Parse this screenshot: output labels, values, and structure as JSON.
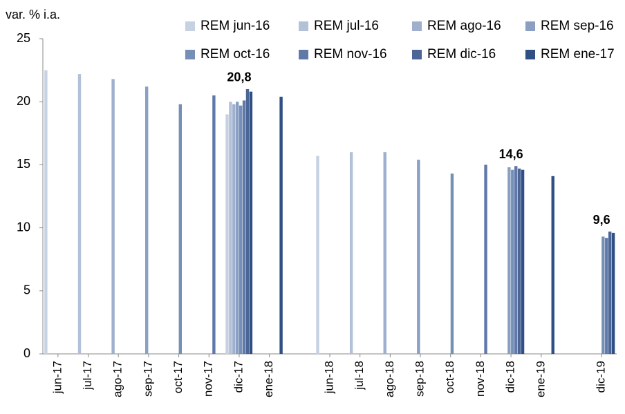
{
  "chart_data": {
    "type": "bar",
    "y_label": "var. % i.a.",
    "categories": [
      "jun-17",
      "jul-17",
      "ago-17",
      "sep-17",
      "oct-17",
      "nov-17",
      "dic-17",
      "ene-18",
      null,
      "jun-18",
      "jul-18",
      "ago-18",
      "sep-18",
      "oct-18",
      "nov-18",
      "dic-18",
      "ene-19",
      null,
      "dic-19"
    ],
    "series": [
      {
        "name": "REM jun-16",
        "color": "#c6d1e2",
        "values": [
          22.5,
          null,
          null,
          null,
          null,
          null,
          19.0,
          null,
          null,
          15.7,
          null,
          null,
          null,
          null,
          null,
          null,
          null,
          null,
          null
        ]
      },
      {
        "name": "REM jul-16",
        "color": "#b3c1d8",
        "values": [
          null,
          22.2,
          null,
          null,
          null,
          null,
          20.0,
          null,
          null,
          null,
          16.0,
          null,
          null,
          null,
          null,
          null,
          null,
          null,
          null
        ]
      },
      {
        "name": "REM ago-16",
        "color": "#9eb0cd",
        "values": [
          null,
          null,
          21.8,
          null,
          null,
          null,
          19.8,
          null,
          null,
          null,
          null,
          16.0,
          null,
          null,
          null,
          null,
          null,
          null,
          null
        ]
      },
      {
        "name": "REM sep-16",
        "color": "#8a9fc2",
        "values": [
          null,
          null,
          null,
          21.2,
          null,
          null,
          20.0,
          null,
          null,
          null,
          null,
          null,
          15.4,
          null,
          null,
          14.8,
          null,
          null,
          null
        ]
      },
      {
        "name": "REM oct-16",
        "color": "#768fb6",
        "values": [
          null,
          null,
          null,
          null,
          19.8,
          null,
          19.7,
          null,
          null,
          null,
          null,
          null,
          null,
          14.3,
          null,
          14.6,
          null,
          null,
          9.3
        ]
      },
      {
        "name": "REM nov-16",
        "color": "#6179a8",
        "values": [
          null,
          null,
          null,
          null,
          null,
          20.5,
          20.1,
          null,
          null,
          null,
          null,
          null,
          null,
          null,
          15.0,
          14.9,
          null,
          null,
          9.2
        ]
      },
      {
        "name": "REM dic-16",
        "color": "#4b6597",
        "values": [
          null,
          null,
          null,
          null,
          null,
          null,
          21.0,
          null,
          null,
          null,
          null,
          null,
          null,
          null,
          null,
          14.7,
          null,
          null,
          9.7
        ]
      },
      {
        "name": "REM ene-17",
        "color": "#2f4f85",
        "values": [
          null,
          null,
          null,
          null,
          null,
          null,
          20.8,
          20.4,
          null,
          null,
          null,
          null,
          null,
          null,
          null,
          14.6,
          14.1,
          null,
          9.6
        ],
        "value_labels": [
          null,
          null,
          null,
          null,
          null,
          null,
          "20,8",
          null,
          null,
          null,
          null,
          null,
          null,
          null,
          null,
          "14,6",
          null,
          null,
          "9,6"
        ]
      }
    ],
    "ylim": [
      0,
      25
    ],
    "yticks": [
      0,
      5,
      10,
      15,
      20,
      25
    ],
    "grid": false
  }
}
